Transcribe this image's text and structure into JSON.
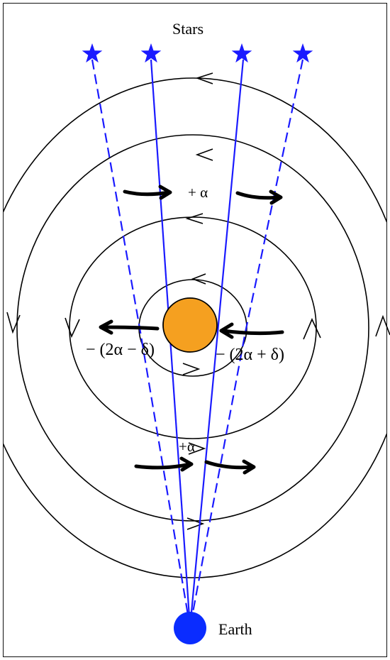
{
  "labels": {
    "stars": "Stars",
    "earth": "Earth",
    "alpha_top": "+ α",
    "alpha_bottom": "+α",
    "left_term": "− (2α − δ)",
    "right_term": "− (2α + δ)"
  },
  "colors": {
    "rays": "#1a1aff",
    "stars": "#1a1aff",
    "earth": "#0a2cff",
    "sun_fill": "#f5a020",
    "sun_stroke": "#000000",
    "orbits": "#000000",
    "arrows": "#000000"
  },
  "icons": {
    "star": "star-icon",
    "earth": "earth-circle",
    "sun": "sun-circle"
  }
}
